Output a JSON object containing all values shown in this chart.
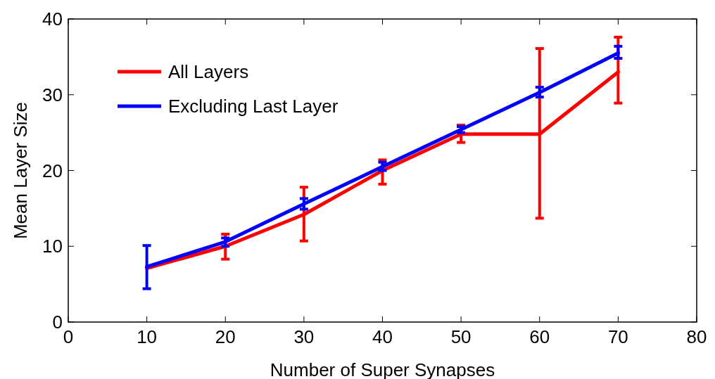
{
  "chart_data": {
    "type": "line",
    "xlabel": "Number of Super Synapses",
    "ylabel": "Mean Layer Size",
    "x": [
      10,
      20,
      30,
      40,
      50,
      60,
      70
    ],
    "xlim": [
      0,
      80
    ],
    "xticks": [
      0,
      10,
      20,
      30,
      40,
      50,
      60,
      70,
      80
    ],
    "ylim": [
      0,
      40
    ],
    "yticks": [
      0,
      10,
      20,
      30,
      40
    ],
    "grid": false,
    "legend": "top left",
    "marker": "none",
    "line_style": "solid",
    "series": [
      {
        "name": "All Layers",
        "color": "#ff0000",
        "values": [
          7.1,
          10,
          14.2,
          20,
          24.8,
          24.8,
          33
        ],
        "errors": [
          null,
          [
            8.3,
            11.6
          ],
          [
            10.7,
            17.8
          ],
          [
            18.2,
            21.4
          ],
          [
            23.7,
            26
          ],
          [
            13.7,
            36.1
          ],
          [
            28.9,
            37.6
          ]
        ]
      },
      {
        "name": "Excluding Last Layer",
        "color": "#0000ff",
        "values": [
          7.3,
          10.6,
          15.6,
          20.5,
          25.4,
          30.3,
          35.5
        ],
        "errors": [
          [
            4.4,
            10.1
          ],
          [
            10,
            11.1
          ],
          [
            14.9,
            16.3
          ],
          [
            20,
            21.1
          ],
          [
            25,
            25.8
          ],
          [
            29.7,
            31
          ],
          [
            34.8,
            36.4
          ]
        ]
      }
    ]
  }
}
